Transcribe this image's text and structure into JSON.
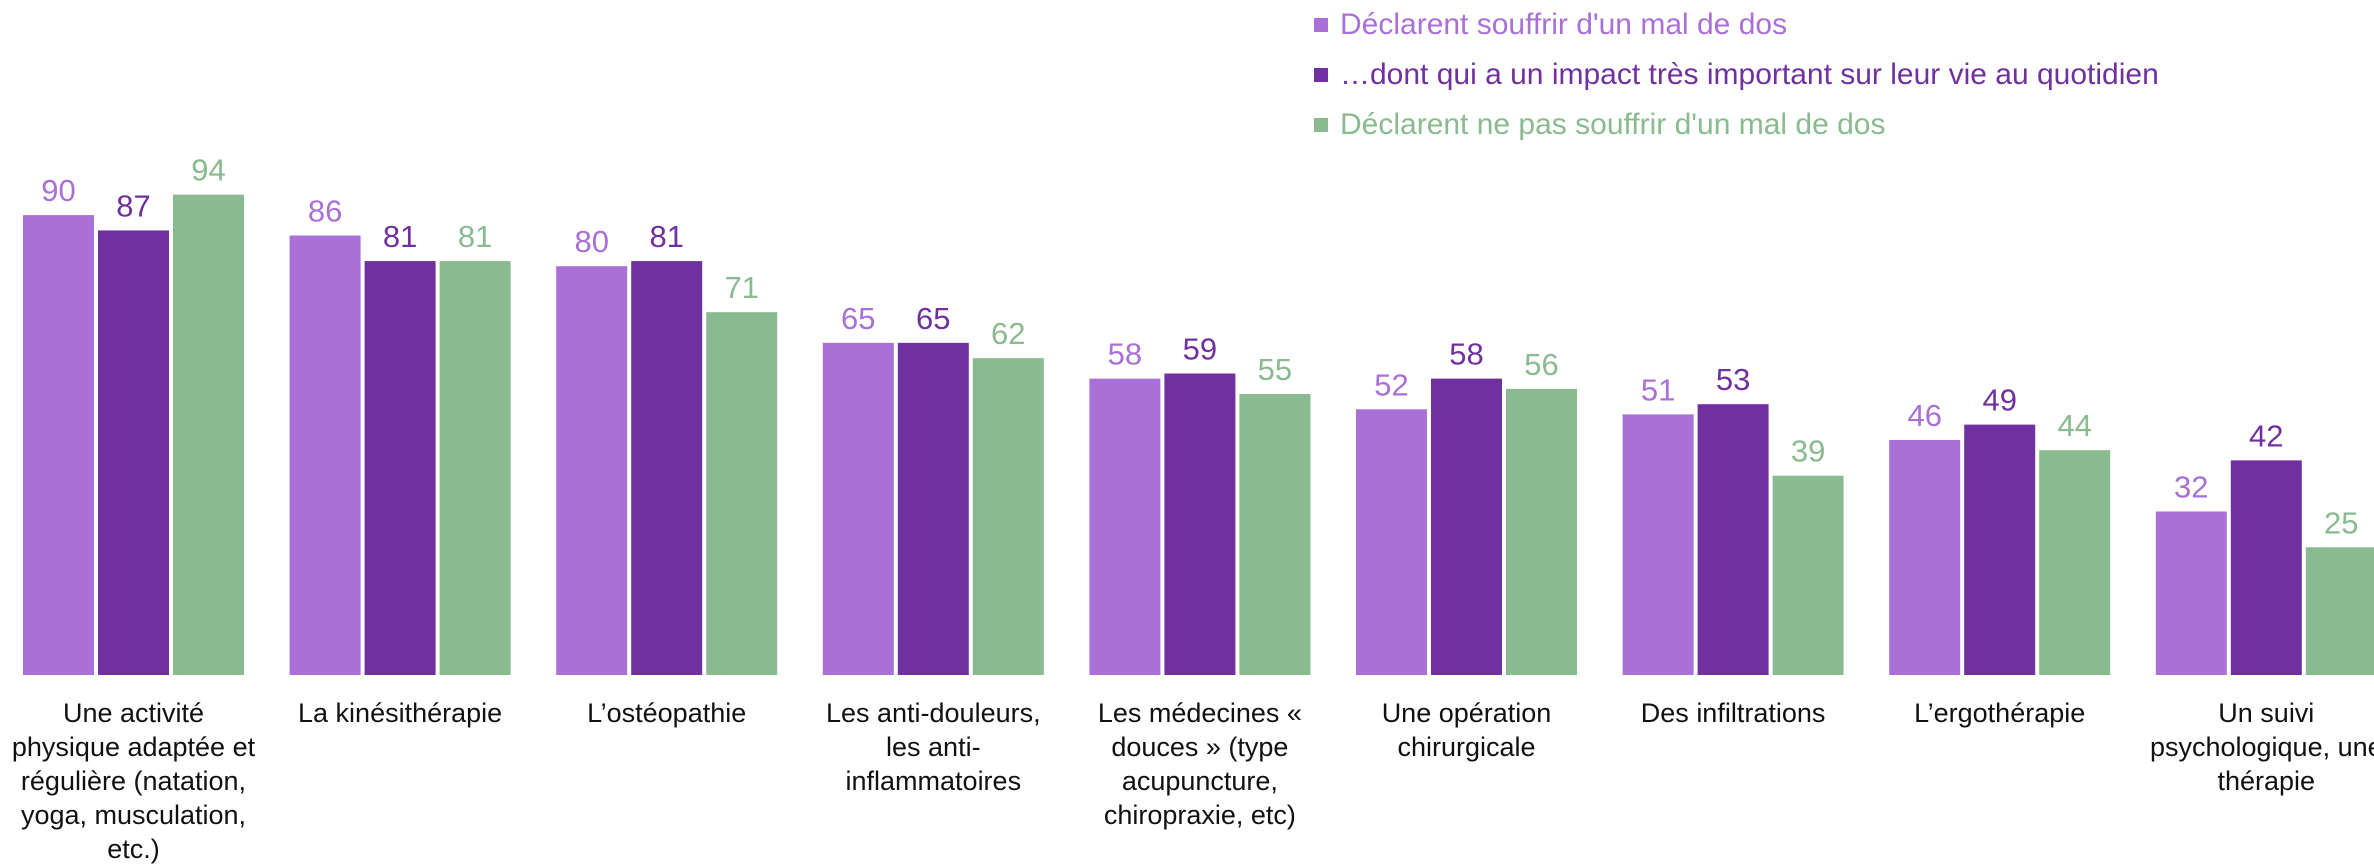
{
  "chart_data": {
    "type": "bar",
    "categories": [
      "Une activité physique adaptée et régulière (natation, yoga, musculation, etc.)",
      "La kinésithérapie",
      "L’ostéopathie",
      "Les anti-douleurs, les anti-inflammatoires",
      "Les médecines « douces » (type acupuncture, chiropraxie, etc)",
      "Une opération chirurgicale",
      "Des infiltrations",
      "L’ergothérapie",
      "Un suivi psychologique, une thérapie"
    ],
    "series": [
      {
        "name": "Déclarent souffrir d'un mal de dos",
        "color": "#a970d8",
        "values": [
          90,
          86,
          80,
          65,
          58,
          52,
          51,
          46,
          32
        ]
      },
      {
        "name": "…dont qui a un impact très important sur leur vie au quotidien",
        "color": "#7030a0",
        "values": [
          87,
          81,
          81,
          65,
          59,
          58,
          53,
          49,
          42
        ]
      },
      {
        "name": "Déclarent ne pas souffrir d'un mal de dos",
        "color": "#8aba8f",
        "values": [
          94,
          81,
          71,
          62,
          55,
          56,
          39,
          44,
          25
        ]
      }
    ],
    "legend": "top-right"
  }
}
